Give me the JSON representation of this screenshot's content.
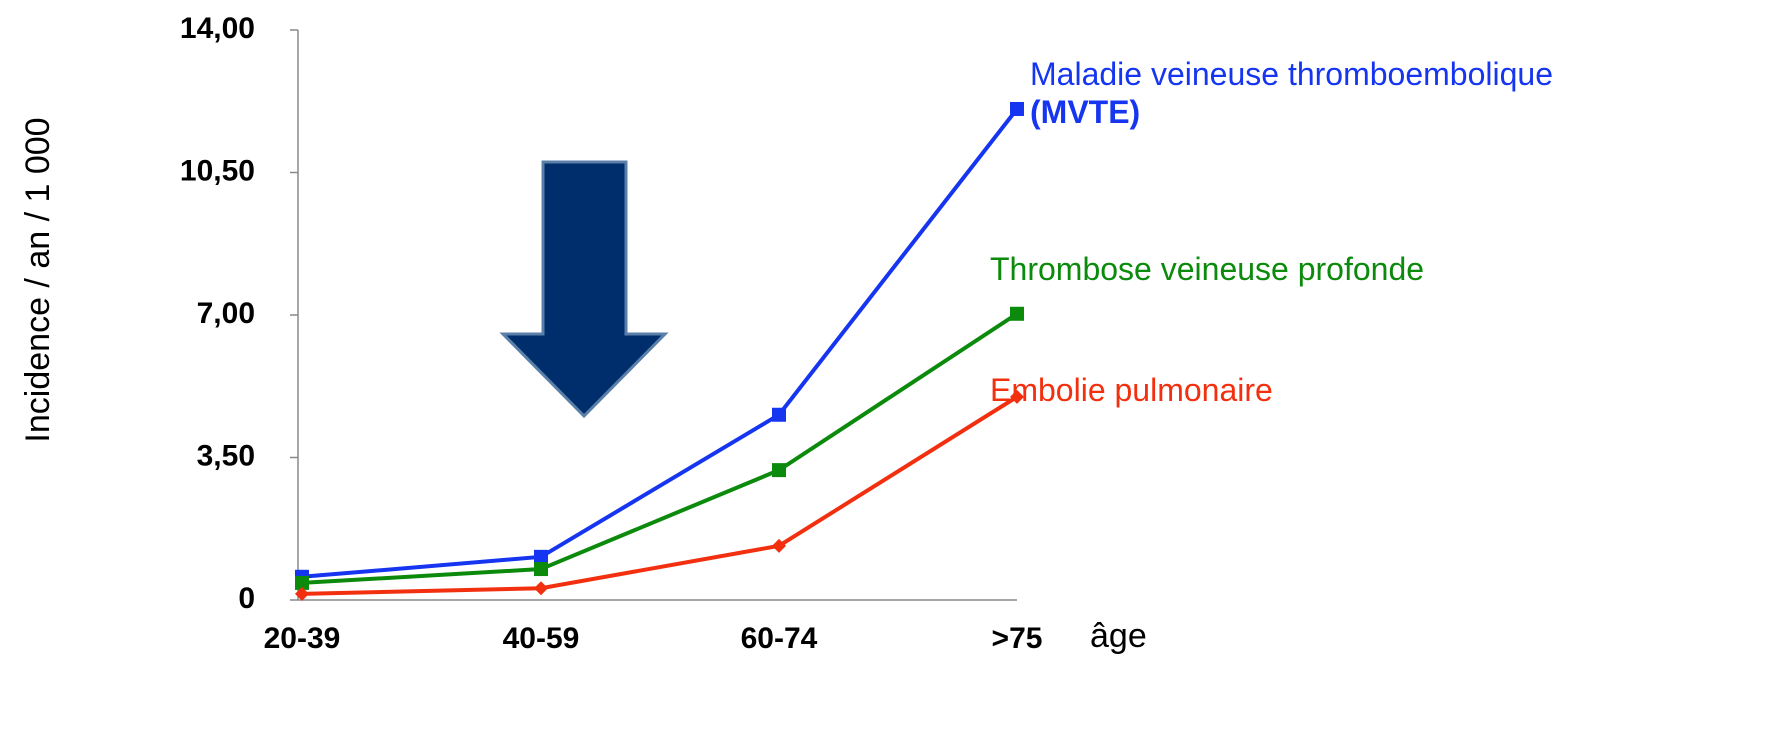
{
  "chart_data": {
    "type": "line",
    "y_label": "Incidence / an / 1 000",
    "x_label": "âge",
    "categories": [
      "20-39",
      "40-59",
      "60-74",
      ">75"
    ],
    "series": [
      {
        "name": "Maladie veineuse thromboembolique",
        "abbreviation": "(MVTE)",
        "color": "#1535f0",
        "marker": "square",
        "values": [
          0.57,
          1.06,
          4.55,
          12.06
        ]
      },
      {
        "name": "Thrombose veineuse profonde",
        "color": "#0b8a0b",
        "marker": "square",
        "values": [
          0.42,
          0.76,
          3.19,
          7.03
        ]
      },
      {
        "name": "Embolie pulmonaire",
        "color": "#f2300f",
        "marker": "diamond",
        "values": [
          0.15,
          0.29,
          1.33,
          4.99
        ]
      }
    ],
    "ylim": [
      0,
      14
    ],
    "yticks": [
      0,
      {
        "value": 3.5,
        "label": "3,50"
      },
      {
        "value": 7,
        "label": "7,00"
      },
      {
        "value": 10.5,
        "label": "10,50"
      },
      {
        "value": 14,
        "label": "14,00"
      }
    ],
    "grid": false
  }
}
